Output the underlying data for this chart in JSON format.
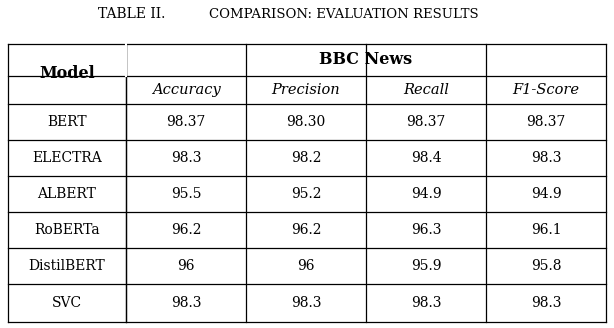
{
  "title": "TABLE II.",
  "subtitle": "Comparison: Evaluation Results",
  "group_header": "BBC News",
  "col_header_model": "Model",
  "col_headers": [
    "Accuracy",
    "Precision",
    "Recall",
    "F1-Score"
  ],
  "rows": [
    [
      "BERT",
      "98.37",
      "98.30",
      "98.37",
      "98.37"
    ],
    [
      "ELECTRA",
      "98.3",
      "98.2",
      "98.4",
      "98.3"
    ],
    [
      "ALBERT",
      "95.5",
      "95.2",
      "94.9",
      "94.9"
    ],
    [
      "RoBERTa",
      "96.2",
      "96.2",
      "96.3",
      "96.1"
    ],
    [
      "DistilBERT",
      "96",
      "96",
      "95.9",
      "95.8"
    ],
    [
      "SVC",
      "98.3",
      "98.3",
      "98.3",
      "98.3"
    ]
  ],
  "background_color": "#ffffff",
  "line_color": "#000000",
  "title_fontsize": 10,
  "header_fontsize": 10,
  "cell_fontsize": 10,
  "fig_width": 6.14,
  "fig_height": 3.28,
  "dpi": 100
}
